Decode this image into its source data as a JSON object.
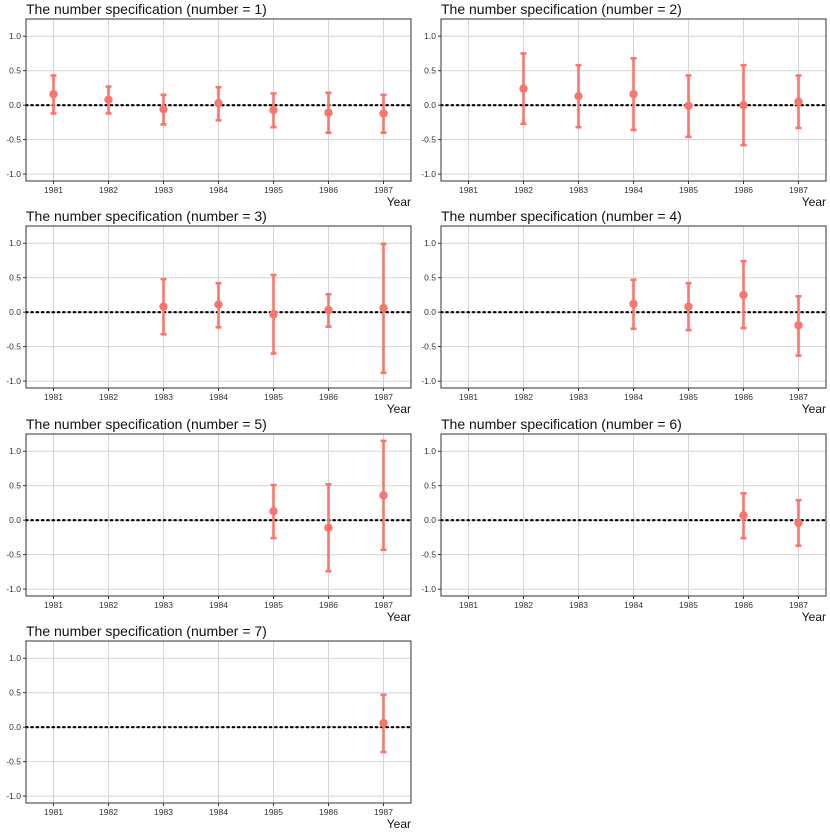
{
  "colors": {
    "point": "#F8766D",
    "grid": "#d4d4d4",
    "panel_border": "#333333",
    "zero_line": "#000000"
  },
  "chart_data": [
    {
      "type": "scatter",
      "title": "The number specification (number = 1)",
      "xlabel": "Year",
      "ylabel": "",
      "x_ticks": [
        "1981",
        "1982",
        "1983",
        "1984",
        "1985",
        "1986",
        "1987"
      ],
      "y_ticks": [
        "-1.0",
        "-0.5",
        "0.0",
        "0.5",
        "1.0"
      ],
      "ylim": [
        -1.1,
        1.25
      ],
      "reference_line": 0,
      "grid": true,
      "points": [
        {
          "x": "1981",
          "y": 0.16,
          "lower": -0.12,
          "upper": 0.43
        },
        {
          "x": "1982",
          "y": 0.08,
          "lower": -0.12,
          "upper": 0.27
        },
        {
          "x": "1983",
          "y": -0.06,
          "lower": -0.28,
          "upper": 0.15
        },
        {
          "x": "1984",
          "y": 0.03,
          "lower": -0.22,
          "upper": 0.26
        },
        {
          "x": "1985",
          "y": -0.07,
          "lower": -0.32,
          "upper": 0.17
        },
        {
          "x": "1986",
          "y": -0.11,
          "lower": -0.4,
          "upper": 0.18
        },
        {
          "x": "1987",
          "y": -0.12,
          "lower": -0.4,
          "upper": 0.15
        }
      ]
    },
    {
      "type": "scatter",
      "title": "The number specification (number = 2)",
      "xlabel": "Year",
      "ylabel": "",
      "x_ticks": [
        "1981",
        "1982",
        "1983",
        "1984",
        "1985",
        "1986",
        "1987"
      ],
      "y_ticks": [
        "-1.0",
        "-0.5",
        "0.0",
        "0.5",
        "1.0"
      ],
      "ylim": [
        -1.1,
        1.25
      ],
      "reference_line": 0,
      "grid": true,
      "points": [
        {
          "x": "1982",
          "y": 0.24,
          "lower": -0.27,
          "upper": 0.75
        },
        {
          "x": "1983",
          "y": 0.13,
          "lower": -0.32,
          "upper": 0.58
        },
        {
          "x": "1984",
          "y": 0.16,
          "lower": -0.36,
          "upper": 0.68
        },
        {
          "x": "1985",
          "y": -0.01,
          "lower": -0.46,
          "upper": 0.43
        },
        {
          "x": "1986",
          "y": 0.0,
          "lower": -0.58,
          "upper": 0.58
        },
        {
          "x": "1987",
          "y": 0.05,
          "lower": -0.33,
          "upper": 0.43
        }
      ]
    },
    {
      "type": "scatter",
      "title": "The number specification (number = 3)",
      "xlabel": "Year",
      "ylabel": "",
      "x_ticks": [
        "1981",
        "1982",
        "1983",
        "1984",
        "1985",
        "1986",
        "1987"
      ],
      "y_ticks": [
        "-1.0",
        "-0.5",
        "0.0",
        "0.5",
        "1.0"
      ],
      "ylim": [
        -1.1,
        1.25
      ],
      "reference_line": 0,
      "grid": true,
      "points": [
        {
          "x": "1983",
          "y": 0.08,
          "lower": -0.32,
          "upper": 0.48
        },
        {
          "x": "1984",
          "y": 0.11,
          "lower": -0.22,
          "upper": 0.42
        },
        {
          "x": "1985",
          "y": -0.03,
          "lower": -0.6,
          "upper": 0.54
        },
        {
          "x": "1986",
          "y": 0.03,
          "lower": -0.21,
          "upper": 0.26
        },
        {
          "x": "1987",
          "y": 0.06,
          "lower": -0.88,
          "upper": 0.99
        }
      ]
    },
    {
      "type": "scatter",
      "title": "The number specification (number = 4)",
      "xlabel": "Year",
      "ylabel": "",
      "x_ticks": [
        "1981",
        "1982",
        "1983",
        "1984",
        "1985",
        "1986",
        "1987"
      ],
      "y_ticks": [
        "-1.0",
        "-0.5",
        "0.0",
        "0.5",
        "1.0"
      ],
      "ylim": [
        -1.1,
        1.25
      ],
      "reference_line": 0,
      "grid": true,
      "points": [
        {
          "x": "1984",
          "y": 0.12,
          "lower": -0.24,
          "upper": 0.47
        },
        {
          "x": "1985",
          "y": 0.08,
          "lower": -0.26,
          "upper": 0.42
        },
        {
          "x": "1986",
          "y": 0.25,
          "lower": -0.23,
          "upper": 0.74
        },
        {
          "x": "1987",
          "y": -0.19,
          "lower": -0.63,
          "upper": 0.23
        }
      ]
    },
    {
      "type": "scatter",
      "title": "The number specification (number = 5)",
      "xlabel": "Year",
      "ylabel": "",
      "x_ticks": [
        "1981",
        "1982",
        "1983",
        "1984",
        "1985",
        "1986",
        "1987"
      ],
      "y_ticks": [
        "-1.0",
        "-0.5",
        "0.0",
        "0.5",
        "1.0"
      ],
      "ylim": [
        -1.1,
        1.25
      ],
      "reference_line": 0,
      "grid": true,
      "points": [
        {
          "x": "1985",
          "y": 0.13,
          "lower": -0.26,
          "upper": 0.51
        },
        {
          "x": "1986",
          "y": -0.11,
          "lower": -0.74,
          "upper": 0.52
        },
        {
          "x": "1987",
          "y": 0.36,
          "lower": -0.43,
          "upper": 1.15
        }
      ]
    },
    {
      "type": "scatter",
      "title": "The number specification (number = 6)",
      "xlabel": "Year",
      "ylabel": "",
      "x_ticks": [
        "1981",
        "1982",
        "1983",
        "1984",
        "1985",
        "1986",
        "1987"
      ],
      "y_ticks": [
        "-1.0",
        "-0.5",
        "0.0",
        "0.5",
        "1.0"
      ],
      "ylim": [
        -1.1,
        1.25
      ],
      "reference_line": 0,
      "grid": true,
      "points": [
        {
          "x": "1986",
          "y": 0.07,
          "lower": -0.26,
          "upper": 0.39
        },
        {
          "x": "1987",
          "y": -0.04,
          "lower": -0.37,
          "upper": 0.29
        }
      ]
    },
    {
      "type": "scatter",
      "title": "The number specification (number = 7)",
      "xlabel": "Year",
      "ylabel": "",
      "x_ticks": [
        "1981",
        "1982",
        "1983",
        "1984",
        "1985",
        "1986",
        "1987"
      ],
      "y_ticks": [
        "-1.0",
        "-0.5",
        "0.0",
        "0.5",
        "1.0"
      ],
      "ylim": [
        -1.1,
        1.25
      ],
      "reference_line": 0,
      "grid": true,
      "points": [
        {
          "x": "1987",
          "y": 0.06,
          "lower": -0.36,
          "upper": 0.47
        }
      ]
    }
  ]
}
